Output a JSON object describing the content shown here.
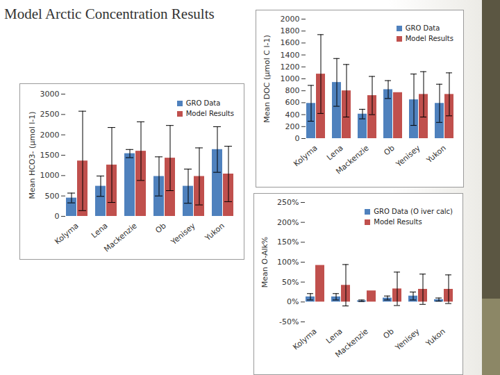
{
  "title": "Model Arctic Concentration Results",
  "chart_data": [
    {
      "type": "bar",
      "ylabel": "Mean HCO3- (μmol l-1)",
      "categories": [
        "Kolyma",
        "Lena",
        "Mackenzie",
        "Ob",
        "Yenisey",
        "Yukon"
      ],
      "series": [
        {
          "name": "GRO Data",
          "color": "#4f81bd",
          "values": [
            450,
            740,
            1540,
            980,
            740,
            1640
          ],
          "errors": [
            120,
            250,
            100,
            480,
            420,
            560
          ]
        },
        {
          "name": "Model Results",
          "color": "#c0504d",
          "values": [
            1360,
            1260,
            1600,
            1430,
            980,
            1040
          ],
          "errors": [
            1220,
            920,
            720,
            800,
            700,
            680
          ]
        }
      ],
      "ylim": [
        0,
        3000
      ],
      "yticks": [
        0,
        500,
        1000,
        1500,
        2000,
        2500,
        3000
      ],
      "legend": "top-right",
      "grid": false
    },
    {
      "type": "bar",
      "ylabel": "Mean DOC (μmol C l-1)",
      "categories": [
        "Kolyma",
        "Lena",
        "Mackenzie",
        "Ob",
        "Yenisey",
        "Yukon"
      ],
      "series": [
        {
          "name": "GRO Data",
          "color": "#4f81bd",
          "values": [
            590,
            940,
            410,
            820,
            650,
            590
          ],
          "errors": [
            300,
            400,
            80,
            150,
            430,
            320
          ]
        },
        {
          "name": "Model Results",
          "color": "#c0504d",
          "values": [
            1080,
            800,
            720,
            770,
            740,
            740
          ],
          "errors": [
            660,
            440,
            320,
            0,
            380,
            360
          ]
        }
      ],
      "ylim": [
        0,
        2000
      ],
      "yticks": [
        0,
        200,
        400,
        600,
        800,
        1000,
        1200,
        1400,
        1600,
        1800,
        2000
      ],
      "legend": "top-right",
      "grid": false
    },
    {
      "type": "bar",
      "ylabel": "Mean O-Alk%",
      "categories": [
        "Kolyma",
        "Lena",
        "Mackenzie",
        "Ob",
        "Yenisey",
        "Yukon"
      ],
      "series": [
        {
          "name": "GRO Data (O iver calc)",
          "color": "#4f81bd",
          "values": [
            13,
            13,
            3,
            10,
            15,
            6
          ],
          "errors": [
            8,
            8,
            2,
            5,
            10,
            4
          ]
        },
        {
          "name": "Model Results",
          "color": "#c0504d",
          "values": [
            92,
            42,
            28,
            33,
            32,
            32
          ],
          "errors": [
            0,
            52,
            0,
            42,
            38,
            36
          ]
        }
      ],
      "ylim": [
        -50,
        250
      ],
      "yticks": [
        {
          "value": -50,
          "label": "-50%"
        },
        {
          "value": 0,
          "label": "0%"
        },
        {
          "value": 50,
          "label": "50%"
        },
        {
          "value": 100,
          "label": "100%"
        },
        {
          "value": 150,
          "label": "150%"
        },
        {
          "value": 200,
          "label": "200%"
        },
        {
          "value": 250,
          "label": "250%"
        }
      ],
      "legend": "top-right",
      "grid": false
    }
  ]
}
